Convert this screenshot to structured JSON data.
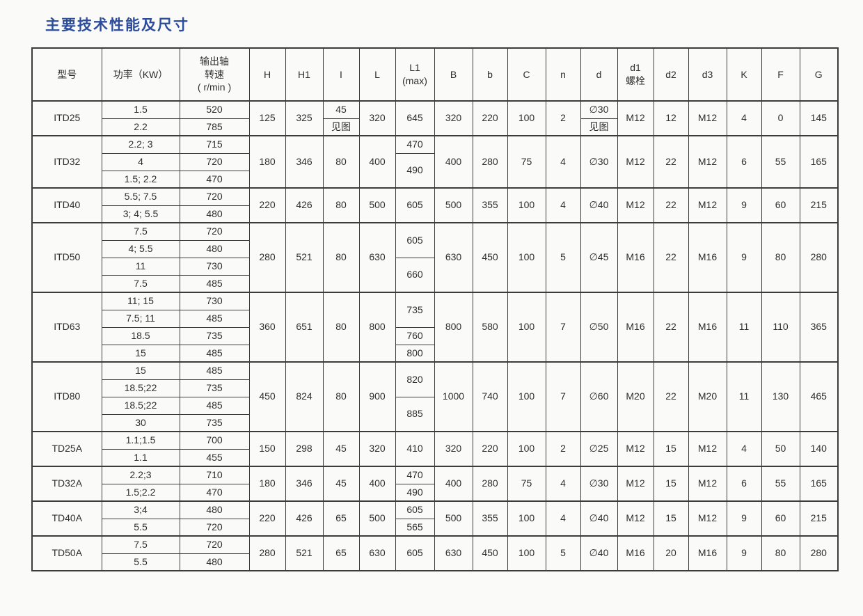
{
  "page": {
    "title": "主要技术性能及尺寸",
    "title_color": "#2c4d9d"
  },
  "table": {
    "headers": [
      "型号",
      "功率（KW）",
      "输出轴\n转速\n( r/min )",
      "H",
      "H1",
      "I",
      "L",
      "L1\n(max)",
      "B",
      "b",
      "C",
      "n",
      "d",
      "d1\n螺栓",
      "d2",
      "d3",
      "K",
      "F",
      "G"
    ],
    "column_keys": [
      "H",
      "H1",
      "I",
      "L",
      "L1",
      "B",
      "b",
      "C",
      "n",
      "d",
      "d1",
      "d2",
      "d3",
      "K",
      "F",
      "G"
    ],
    "groups": [
      {
        "model": "ITD25",
        "rows": [
          {
            "power": "1.5",
            "speed": "520"
          },
          {
            "power": "2.2",
            "speed": "785"
          }
        ],
        "H": "125",
        "H1": "325",
        "I": [
          {
            "t": "45",
            "s": 1
          },
          {
            "t": "见图",
            "s": 1
          }
        ],
        "L": "320",
        "L1": "645",
        "B": "320",
        "b": "220",
        "C": "100",
        "n": "2",
        "d": [
          {
            "t": "∅30",
            "s": 1
          },
          {
            "t": "见图",
            "s": 1
          }
        ],
        "d1": "M12",
        "d2": "12",
        "d3": "M12",
        "K": "4",
        "F": "0",
        "G": "145"
      },
      {
        "model": "ITD32",
        "rows": [
          {
            "power": "2.2; 3",
            "speed": "715"
          },
          {
            "power": "4",
            "speed": "720"
          },
          {
            "power": "1.5; 2.2",
            "speed": "470"
          }
        ],
        "H": "180",
        "H1": "346",
        "I": "80",
        "L": "400",
        "L1": [
          {
            "t": "470",
            "s": 1
          },
          {
            "t": "490",
            "s": 2
          }
        ],
        "B": "400",
        "b": "280",
        "C": "75",
        "n": "4",
        "d": "∅30",
        "d1": "M12",
        "d2": "22",
        "d3": "M12",
        "K": "6",
        "F": "55",
        "G": "165"
      },
      {
        "model": "ITD40",
        "rows": [
          {
            "power": "5.5; 7.5",
            "speed": "720"
          },
          {
            "power": "3; 4; 5.5",
            "speed": "480"
          }
        ],
        "H": "220",
        "H1": "426",
        "I": "80",
        "L": "500",
        "L1": "605",
        "B": "500",
        "b": "355",
        "C": "100",
        "n": "4",
        "d": "∅40",
        "d1": "M12",
        "d2": "22",
        "d3": "M12",
        "K": "9",
        "F": "60",
        "G": "215"
      },
      {
        "model": "ITD50",
        "rows": [
          {
            "power": "7.5",
            "speed": "720"
          },
          {
            "power": "4; 5.5",
            "speed": "480"
          },
          {
            "power": "11",
            "speed": "730"
          },
          {
            "power": "7.5",
            "speed": "485"
          }
        ],
        "H": "280",
        "H1": "521",
        "I": "80",
        "L": "630",
        "L1": [
          {
            "t": "605",
            "s": 2
          },
          {
            "t": "660",
            "s": 2
          }
        ],
        "B": "630",
        "b": "450",
        "C": "100",
        "n": "5",
        "d": "∅45",
        "d1": "M16",
        "d2": "22",
        "d3": "M16",
        "K": "9",
        "F": "80",
        "G": "280"
      },
      {
        "model": "ITD63",
        "rows": [
          {
            "power": "11; 15",
            "speed": "730"
          },
          {
            "power": "7.5; 11",
            "speed": "485"
          },
          {
            "power": "18.5",
            "speed": "735"
          },
          {
            "power": "15",
            "speed": "485"
          }
        ],
        "H": "360",
        "H1": "651",
        "I": "80",
        "L": "800",
        "L1": [
          {
            "t": "735",
            "s": 2
          },
          {
            "t": "760",
            "s": 1
          },
          {
            "t": "800",
            "s": 1
          }
        ],
        "B": "800",
        "b": "580",
        "C": "100",
        "n": "7",
        "d": "∅50",
        "d1": "M16",
        "d2": "22",
        "d3": "M16",
        "K": "11",
        "F": "110",
        "G": "365"
      },
      {
        "model": "ITD80",
        "rows": [
          {
            "power": "15",
            "speed": "485"
          },
          {
            "power": "18.5;22",
            "speed": "735"
          },
          {
            "power": "18.5;22",
            "speed": "485"
          },
          {
            "power": "30",
            "speed": "735"
          }
        ],
        "H": "450",
        "H1": "824",
        "I": "80",
        "L": "900",
        "L1": [
          {
            "t": "820",
            "s": 2
          },
          {
            "t": "885",
            "s": 2
          }
        ],
        "B": "1000",
        "b": "740",
        "C": "100",
        "n": "7",
        "d": "∅60",
        "d1": "M20",
        "d2": "22",
        "d3": "M20",
        "K": "11",
        "F": "130",
        "G": "465"
      },
      {
        "model": "TD25A",
        "rows": [
          {
            "power": "1.1;1.5",
            "speed": "700"
          },
          {
            "power": "1.1",
            "speed": "455"
          }
        ],
        "H": "150",
        "H1": "298",
        "I": "45",
        "L": "320",
        "L1": "410",
        "B": "320",
        "b": "220",
        "C": "100",
        "n": "2",
        "d": "∅25",
        "d1": "M12",
        "d2": "15",
        "d3": "M12",
        "K": "4",
        "F": "50",
        "G": "140"
      },
      {
        "model": "TD32A",
        "rows": [
          {
            "power": "2.2;3",
            "speed": "710"
          },
          {
            "power": "1.5;2.2",
            "speed": "470"
          }
        ],
        "H": "180",
        "H1": "346",
        "I": "45",
        "L": "400",
        "L1": [
          {
            "t": "470",
            "s": 1
          },
          {
            "t": "490",
            "s": 1
          }
        ],
        "B": "400",
        "b": "280",
        "C": "75",
        "n": "4",
        "d": "∅30",
        "d1": "M12",
        "d2": "15",
        "d3": "M12",
        "K": "6",
        "F": "55",
        "G": "165"
      },
      {
        "model": "TD40A",
        "rows": [
          {
            "power": "3;4",
            "speed": "480"
          },
          {
            "power": "5.5",
            "speed": "720"
          }
        ],
        "H": "220",
        "H1": "426",
        "I": "65",
        "L": "500",
        "L1": [
          {
            "t": "605",
            "s": 1
          },
          {
            "t": "565",
            "s": 1
          }
        ],
        "B": "500",
        "b": "355",
        "C": "100",
        "n": "4",
        "d": "∅40",
        "d1": "M12",
        "d2": "15",
        "d3": "M12",
        "K": "9",
        "F": "60",
        "G": "215"
      },
      {
        "model": "TD50A",
        "rows": [
          {
            "power": "7.5",
            "speed": "720"
          },
          {
            "power": "5.5",
            "speed": "480"
          }
        ],
        "H": "280",
        "H1": "521",
        "I": "65",
        "L": "630",
        "L1": "605",
        "B": "630",
        "b": "450",
        "C": "100",
        "n": "5",
        "d": "∅40",
        "d1": "M16",
        "d2": "20",
        "d3": "M16",
        "K": "9",
        "F": "80",
        "G": "280"
      }
    ]
  }
}
